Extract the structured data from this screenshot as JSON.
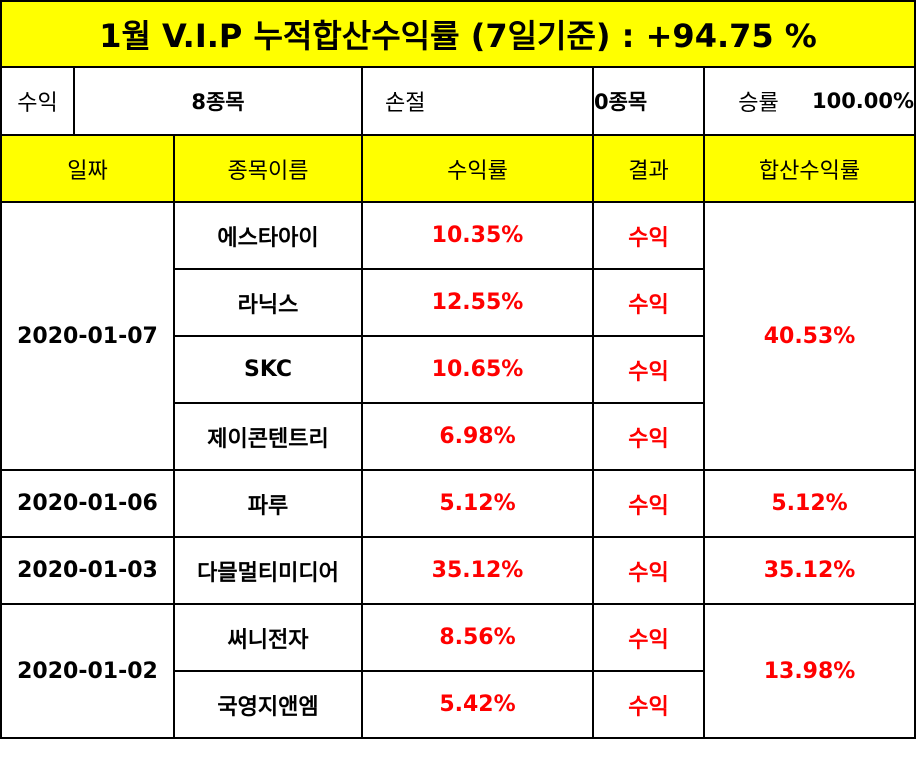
{
  "title": "1월 V.I.P 누적합산수익률 (7일기준) : +94.75 %",
  "summary": {
    "profit_label": "수익",
    "profit_value": "8종목",
    "loss_label": "손절",
    "loss_value": "0종목",
    "winrate_label": "승률",
    "winrate_value": "100.00%",
    "colors": {
      "profit": "#ff0000",
      "loss": "#1fb3e6"
    }
  },
  "headers": [
    "일짜",
    "종목이름",
    "수익률",
    "결과",
    "합산수익률"
  ],
  "groups": [
    {
      "date": "2020-01-07",
      "total": "40.53%",
      "rows": [
        {
          "name": "에스타아이",
          "rate": "10.35%",
          "result": "수익"
        },
        {
          "name": "라닉스",
          "rate": "12.55%",
          "result": "수익"
        },
        {
          "name": "SKC",
          "rate": "10.65%",
          "result": "수익"
        },
        {
          "name": "제이콘텐트리",
          "rate": "6.98%",
          "result": "수익"
        }
      ]
    },
    {
      "date": "2020-01-06",
      "total": "5.12%",
      "rows": [
        {
          "name": "파루",
          "rate": "5.12%",
          "result": "수익"
        }
      ]
    },
    {
      "date": "2020-01-03",
      "total": "35.12%",
      "rows": [
        {
          "name": "다믈멀티미디어",
          "rate": "35.12%",
          "result": "수익"
        }
      ]
    },
    {
      "date": "2020-01-02",
      "total": "13.98%",
      "rows": [
        {
          "name": "써니전자",
          "rate": "8.56%",
          "result": "수익"
        },
        {
          "name": "국영지앤엠",
          "rate": "5.42%",
          "result": "수익"
        }
      ]
    }
  ]
}
